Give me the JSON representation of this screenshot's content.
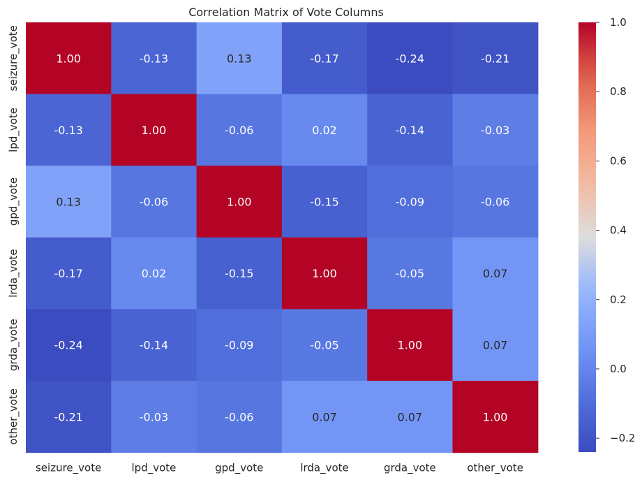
{
  "chart_data": {
    "type": "heatmap",
    "title": "Correlation Matrix of Vote Columns",
    "xlabel": "",
    "ylabel": "",
    "x_categories": [
      "seizure_vote",
      "lpd_vote",
      "gpd_vote",
      "lrda_vote",
      "grda_vote",
      "other_vote"
    ],
    "y_categories": [
      "seizure_vote",
      "lpd_vote",
      "gpd_vote",
      "lrda_vote",
      "grda_vote",
      "other_vote"
    ],
    "values": [
      [
        1.0,
        -0.13,
        0.13,
        -0.17,
        -0.24,
        -0.21
      ],
      [
        -0.13,
        1.0,
        -0.06,
        0.02,
        -0.14,
        -0.03
      ],
      [
        0.13,
        -0.06,
        1.0,
        -0.15,
        -0.09,
        -0.06
      ],
      [
        -0.17,
        0.02,
        -0.15,
        1.0,
        -0.05,
        0.07
      ],
      [
        -0.24,
        -0.14,
        -0.09,
        -0.05,
        1.0,
        0.07
      ],
      [
        -0.21,
        -0.03,
        -0.06,
        0.07,
        0.07,
        1.0
      ]
    ],
    "annotation_format": "0.00",
    "colormap": "coolwarm",
    "colorbar": {
      "range": [
        -0.24,
        1.0
      ],
      "ticks": [
        -0.2,
        0.0,
        0.2,
        0.4,
        0.6,
        0.8,
        1.0
      ],
      "tick_labels": [
        "−0.2",
        "0.0",
        "0.2",
        "0.4",
        "0.6",
        "0.8",
        "1.0"
      ]
    },
    "grid": false,
    "legend": "colorbar-right"
  }
}
